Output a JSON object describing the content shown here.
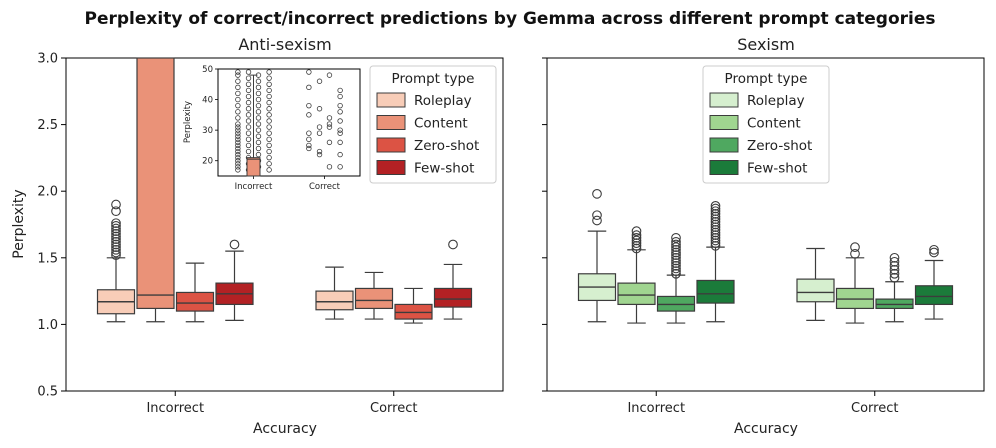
{
  "figure_title": "Perplexity of correct/incorrect predictions by Gemma across different prompt categories",
  "chart_data": [
    {
      "type": "box",
      "title": "Anti-sexism",
      "xlabel": "Accuracy",
      "ylabel": "Perplexity",
      "ylim": [
        0.5,
        3.0
      ],
      "yticks": [
        "0.5",
        "1.0",
        "1.5",
        "2.0",
        "2.5",
        "3.0"
      ],
      "categories": [
        "Incorrect",
        "Correct"
      ],
      "legend": {
        "title": "Prompt type",
        "placement": "top-right"
      },
      "series": [
        {
          "name": "Roleplay",
          "color": "#f8cdb8",
          "boxes": [
            {
              "whislo": 1.02,
              "q1": 1.08,
              "med": 1.17,
              "q3": 1.26,
              "whishi": 1.5,
              "fliers": [
                1.52,
                1.54,
                1.56,
                1.58,
                1.6,
                1.62,
                1.64,
                1.66,
                1.68,
                1.7,
                1.72,
                1.74,
                1.76,
                1.85,
                1.9
              ]
            },
            {
              "whislo": 1.04,
              "q1": 1.11,
              "med": 1.17,
              "q3": 1.25,
              "whishi": 1.43,
              "fliers": []
            }
          ]
        },
        {
          "name": "Content",
          "color": "#ea9278",
          "boxes": [
            {
              "whislo": 1.02,
              "q1": 1.12,
              "med": 1.22,
              "q3": 3.0,
              "whishi": 3.0,
              "fliers": []
            },
            {
              "whislo": 1.04,
              "q1": 1.12,
              "med": 1.18,
              "q3": 1.27,
              "whishi": 1.39,
              "fliers": []
            }
          ]
        },
        {
          "name": "Zero-shot",
          "color": "#dc5344",
          "boxes": [
            {
              "whislo": 1.02,
              "q1": 1.1,
              "med": 1.16,
              "q3": 1.24,
              "whishi": 1.46,
              "fliers": []
            },
            {
              "whislo": 1.01,
              "q1": 1.04,
              "med": 1.09,
              "q3": 1.15,
              "whishi": 1.27,
              "fliers": []
            }
          ]
        },
        {
          "name": "Few-shot",
          "color": "#b32124",
          "boxes": [
            {
              "whislo": 1.03,
              "q1": 1.15,
              "med": 1.23,
              "q3": 1.31,
              "whishi": 1.55,
              "fliers": [
                1.6
              ]
            },
            {
              "whislo": 1.04,
              "q1": 1.13,
              "med": 1.19,
              "q3": 1.27,
              "whishi": 1.45,
              "fliers": [
                1.6
              ]
            }
          ]
        }
      ],
      "inset": {
        "ylabel": "Perplexity",
        "ylim": [
          15,
          50
        ],
        "yticks": [
          "20",
          "30",
          "40",
          "50"
        ],
        "categories": [
          "Incorrect",
          "Correct"
        ],
        "box": {
          "series": "Content",
          "category": "Incorrect",
          "q1": 15,
          "med": 20.5,
          "q3": 21,
          "whishi": 48
        },
        "fliers": [
          {
            "category": "Incorrect",
            "offset": -0.22,
            "values": [
              49,
              48,
              46,
              44,
              42,
              40,
              38,
              36,
              34,
              32,
              31,
              30,
              29,
              28,
              27,
              26,
              25,
              24,
              23,
              22,
              21,
              20,
              19,
              18,
              17
            ]
          },
          {
            "category": "Incorrect",
            "offset": -0.07,
            "values": [
              49,
              47,
              45,
              43,
              41,
              39,
              37,
              35,
              33,
              31,
              29,
              27,
              25,
              23,
              21,
              19,
              17
            ]
          },
          {
            "category": "Incorrect",
            "offset": 0.07,
            "values": [
              48,
              46,
              44,
              42,
              40,
              38,
              36,
              34,
              32,
              30,
              28,
              26,
              24,
              22,
              20,
              18
            ]
          },
          {
            "category": "Incorrect",
            "offset": 0.22,
            "values": [
              49,
              47,
              45,
              43,
              41,
              39,
              37,
              35,
              33,
              31,
              29,
              27,
              25,
              23,
              21,
              19,
              17
            ]
          },
          {
            "category": "Correct",
            "offset": -0.22,
            "values": [
              49,
              44,
              38,
              35,
              29,
              27,
              25,
              24
            ]
          },
          {
            "category": "Correct",
            "offset": -0.07,
            "values": [
              46,
              37,
              31,
              29,
              23,
              22
            ]
          },
          {
            "category": "Correct",
            "offset": 0.07,
            "values": [
              48,
              34,
              32,
              31,
              26,
              18
            ]
          },
          {
            "category": "Correct",
            "offset": 0.22,
            "values": [
              43,
              41,
              38,
              36,
              33,
              30,
              29,
              26,
              22,
              18
            ]
          }
        ]
      }
    },
    {
      "type": "box",
      "title": "Sexism",
      "xlabel": "Accuracy",
      "ylabel": "",
      "ylim": [
        0.5,
        3.0
      ],
      "categories": [
        "Incorrect",
        "Correct"
      ],
      "legend": {
        "title": "Prompt type",
        "placement": "top-center"
      },
      "series": [
        {
          "name": "Roleplay",
          "color": "#d6efcf",
          "boxes": [
            {
              "whislo": 1.02,
              "q1": 1.18,
              "med": 1.28,
              "q3": 1.38,
              "whishi": 1.7,
              "fliers": [
                1.78,
                1.82,
                1.98
              ]
            },
            {
              "whislo": 1.03,
              "q1": 1.17,
              "med": 1.24,
              "q3": 1.34,
              "whishi": 1.57,
              "fliers": []
            }
          ]
        },
        {
          "name": "Content",
          "color": "#a0d590",
          "boxes": [
            {
              "whislo": 1.01,
              "q1": 1.15,
              "med": 1.22,
              "q3": 1.31,
              "whishi": 1.56,
              "fliers": [
                1.57,
                1.59,
                1.61,
                1.63,
                1.65,
                1.67,
                1.7
              ]
            },
            {
              "whislo": 1.01,
              "q1": 1.12,
              "med": 1.19,
              "q3": 1.27,
              "whishi": 1.5,
              "fliers": [
                1.53,
                1.58
              ]
            }
          ]
        },
        {
          "name": "Zero-shot",
          "color": "#4fa860",
          "boxes": [
            {
              "whislo": 1.01,
              "q1": 1.1,
              "med": 1.15,
              "q3": 1.21,
              "whishi": 1.37,
              "fliers": [
                1.38,
                1.4,
                1.42,
                1.44,
                1.46,
                1.48,
                1.5,
                1.52,
                1.54,
                1.56,
                1.58,
                1.6,
                1.62,
                1.65
              ]
            },
            {
              "whislo": 1.02,
              "q1": 1.12,
              "med": 1.15,
              "q3": 1.19,
              "whishi": 1.32,
              "fliers": [
                1.35,
                1.38,
                1.41,
                1.44,
                1.47,
                1.5
              ]
            }
          ]
        },
        {
          "name": "Few-shot",
          "color": "#1b7b3a",
          "boxes": [
            {
              "whislo": 1.02,
              "q1": 1.16,
              "med": 1.23,
              "q3": 1.33,
              "whishi": 1.58,
              "fliers": [
                1.59,
                1.61,
                1.63,
                1.65,
                1.67,
                1.69,
                1.71,
                1.73,
                1.75,
                1.77,
                1.79,
                1.81,
                1.83,
                1.85,
                1.87,
                1.89
              ]
            },
            {
              "whislo": 1.04,
              "q1": 1.15,
              "med": 1.21,
              "q3": 1.29,
              "whishi": 1.48,
              "fliers": [
                1.54,
                1.56
              ]
            }
          ]
        }
      ]
    }
  ]
}
